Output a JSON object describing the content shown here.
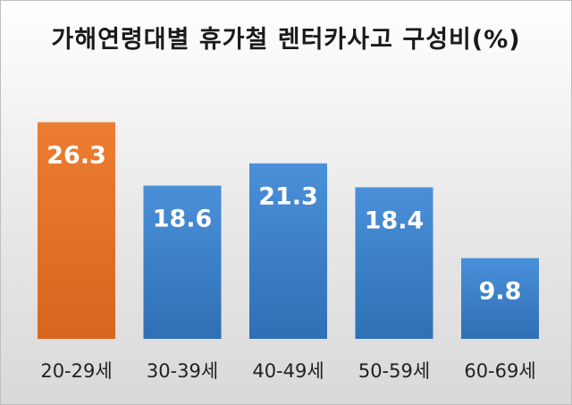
{
  "chart_data": {
    "type": "bar",
    "title": "가해연령대별 휴가철 렌터카사고 구성비(%)",
    "categories": [
      "20-29세",
      "30-39세",
      "40-49세",
      "50-59세",
      "60-69세"
    ],
    "values": [
      26.3,
      18.6,
      21.3,
      18.4,
      9.8
    ],
    "value_labels": [
      "26.3",
      "18.6",
      "21.3",
      "18.4",
      "9.8"
    ],
    "ylim": [
      0,
      28
    ],
    "grid": false,
    "legend": "none",
    "colors": {
      "highlight": "#ED7D31",
      "highlight_dark": "#D8661E",
      "bar": "#4A90D9",
      "bar_dark": "#2F6FB5",
      "label": "#ffffff",
      "axis_text": "#222222"
    },
    "highlight_index": 0
  }
}
